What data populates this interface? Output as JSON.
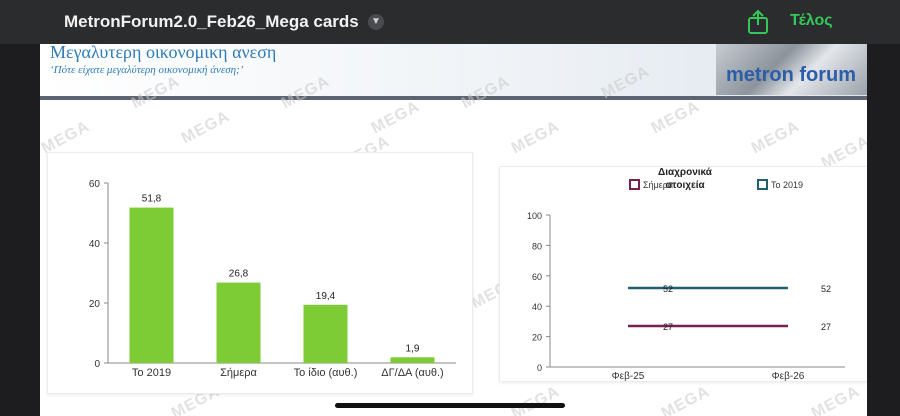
{
  "app": {
    "document_title": "MetronForum2.0_Feb26_Mega cards",
    "done_label": "Τέλος"
  },
  "slide": {
    "title": "Μεγαλυτερη οικονομικη ανεση",
    "subtitle": "‘Πότε είχατε μεγαλύτερη οικονομική άνεση;’",
    "logo_text": "metron forum",
    "watermark": "MEGA"
  },
  "colors": {
    "bar": "#7dcc35",
    "series_today": "#7a1f4f",
    "series_2019": "#1f5f6e",
    "title_blue": "#2e7cb8"
  },
  "chart_data": [
    {
      "type": "bar",
      "categories": [
        "Το 2019",
        "Σήμερα",
        "Το ίδιο (αυθ.)",
        "ΔΓ/ΔΑ (αυθ.)"
      ],
      "values": [
        51.8,
        26.8,
        19.4,
        1.9
      ],
      "value_labels": [
        "51,8",
        "26,8",
        "19,4",
        "1,9"
      ],
      "yticks": [
        "0",
        "20",
        "40",
        "60"
      ],
      "ylim": [
        0,
        60
      ],
      "grid": false
    },
    {
      "type": "line",
      "title": "Διαχρονικά στοιχεία",
      "x": [
        "Φεβ-25",
        "Φεβ-26"
      ],
      "yticks": [
        "0",
        "20",
        "40",
        "60",
        "80",
        "100"
      ],
      "ylim": [
        0,
        100
      ],
      "legend_position": "top",
      "series": [
        {
          "name": "Σήμερα",
          "values": [
            27,
            27
          ],
          "labels": [
            "27",
            "27"
          ]
        },
        {
          "name": "Το 2019",
          "values": [
            52,
            52
          ],
          "labels": [
            "52",
            "52"
          ]
        }
      ]
    }
  ]
}
